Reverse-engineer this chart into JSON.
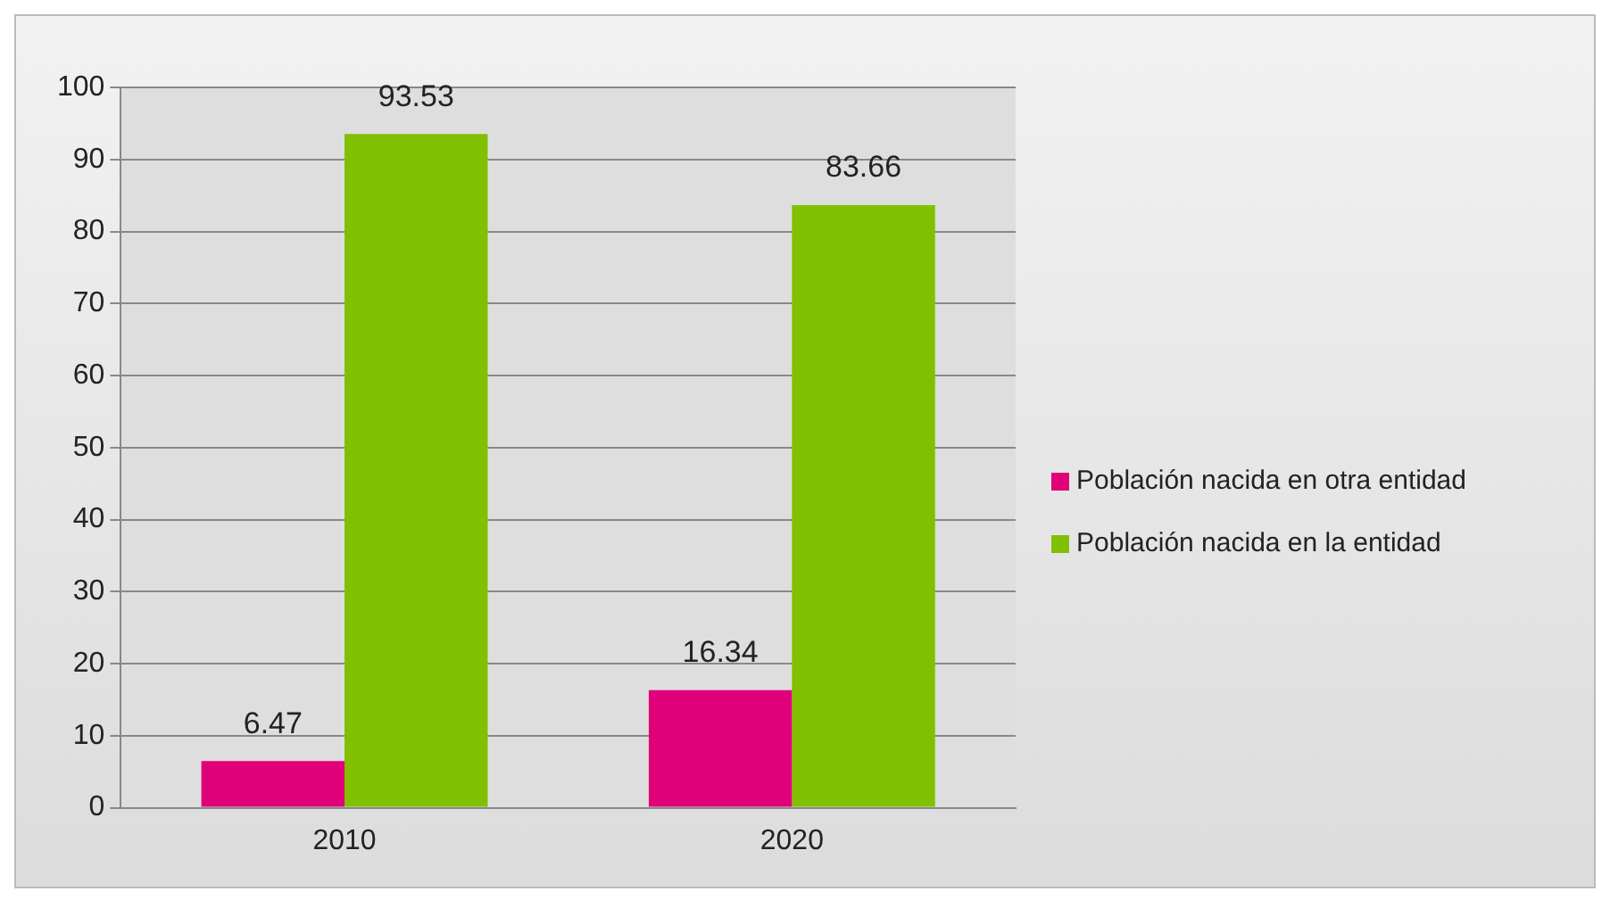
{
  "chart_data": {
    "type": "bar",
    "categories": [
      "2010",
      "2020"
    ],
    "series": [
      {
        "name": "Población nacida en otra entidad",
        "color": "#e0007a",
        "values": [
          6.47,
          16.34
        ]
      },
      {
        "name": "Población nacida en la entidad",
        "color": "#80c000",
        "values": [
          93.53,
          83.66
        ]
      }
    ],
    "ylim": [
      0,
      100
    ],
    "yticks": [
      0,
      10,
      20,
      30,
      40,
      50,
      60,
      70,
      80,
      90,
      100
    ],
    "grid": "y",
    "legend": "right",
    "data_labels": true
  }
}
